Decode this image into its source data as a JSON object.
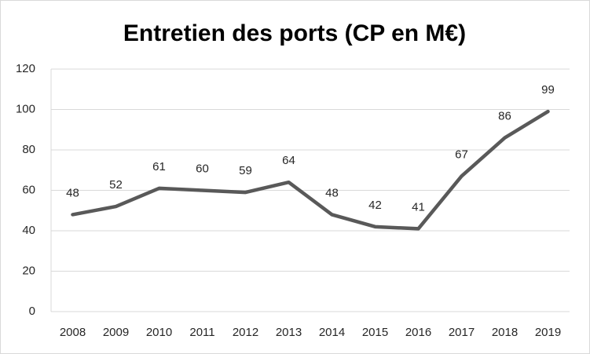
{
  "chart_data": {
    "type": "line",
    "title": "Entretien des ports (CP en M€)",
    "categories": [
      "2008",
      "2009",
      "2010",
      "2011",
      "2012",
      "2013",
      "2014",
      "2015",
      "2016",
      "2017",
      "2018",
      "2019"
    ],
    "values": [
      48,
      52,
      61,
      60,
      59,
      64,
      48,
      42,
      41,
      67,
      86,
      99
    ],
    "color": "#595959",
    "ylim": [
      0,
      120
    ],
    "yticks": [
      0,
      20,
      40,
      60,
      80,
      100,
      120
    ],
    "grid": true
  }
}
